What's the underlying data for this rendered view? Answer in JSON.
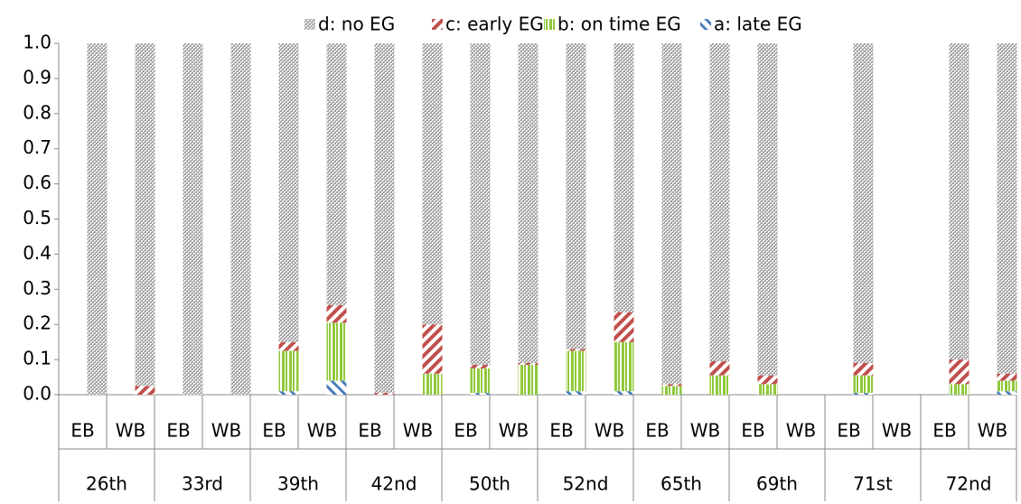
{
  "chart_data": {
    "type": "stacked_bar",
    "categories": [
      "EB",
      "WB",
      "EB",
      "WB",
      "EB",
      "WB",
      "EB",
      "WB",
      "EB",
      "WB",
      "EB",
      "WB",
      "EB",
      "WB",
      "EB",
      "WB",
      "EB",
      "WB",
      "EB",
      "WB"
    ],
    "groups": [
      "26th",
      "33rd",
      "39th",
      "42nd",
      "50th",
      "52nd",
      "65th",
      "69th",
      "71st",
      "72nd"
    ],
    "series": [
      {
        "name": "a: late EG",
        "color": "#4a7ebb",
        "pattern": "diagonal-right",
        "values": [
          0,
          0,
          0,
          0,
          0.01,
          0.04,
          0,
          0,
          0.005,
          0,
          0.01,
          0.01,
          0,
          0,
          0,
          0,
          0.005,
          0,
          0,
          0.01
        ]
      },
      {
        "name": "b: on time EG",
        "color": "#8fc93a",
        "pattern": "vertical",
        "values": [
          0,
          0,
          0,
          0,
          0.115,
          0.165,
          0,
          0.06,
          0.07,
          0.085,
          0.115,
          0.14,
          0.025,
          0.055,
          0.03,
          0,
          0.05,
          0,
          0.03,
          0.03
        ]
      },
      {
        "name": "c: early EG",
        "color": "#c0504d",
        "pattern": "diagonal-left",
        "values": [
          0,
          0.025,
          0,
          0,
          0.025,
          0.05,
          0.005,
          0.14,
          0.01,
          0.005,
          0.005,
          0.085,
          0.005,
          0.04,
          0.025,
          0,
          0.035,
          0,
          0.07,
          0.02
        ]
      },
      {
        "name": "d: no EG",
        "color": "#a6a6a6",
        "pattern": "checker",
        "values": [
          1,
          0.975,
          1,
          1,
          0.85,
          0.745,
          0.995,
          0.8,
          0.915,
          0.91,
          0.87,
          0.765,
          0.97,
          0.905,
          0.945,
          0,
          0.91,
          0,
          0.9,
          0.94
        ]
      }
    ],
    "ylim": [
      0,
      1
    ],
    "yticks": [
      {
        "value": 0,
        "label": "0.0"
      },
      0.1,
      0.2,
      0.3,
      0.4,
      0.5,
      0.6,
      0.7,
      0.8,
      0.9,
      {
        "value": 1,
        "label": "1.0"
      }
    ],
    "legend": "top",
    "grid": false
  }
}
